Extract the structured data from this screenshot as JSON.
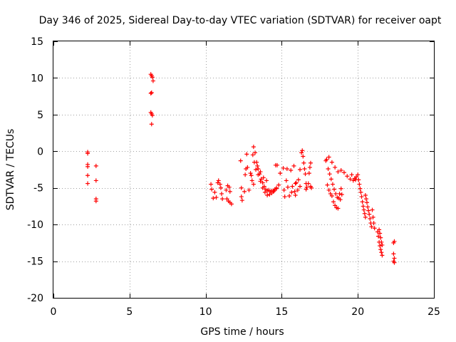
{
  "chart_data": {
    "type": "scatter",
    "title": "Day 346 of 2025, Sidereal Day-to-day VTEC variation (SDTVAR) for receiver oapt",
    "xlabel": "GPS time / hours",
    "ylabel": "SDTVAR / TECUs",
    "xlim": [
      0,
      25
    ],
    "ylim": [
      -20,
      15
    ],
    "xticks": [
      0,
      5,
      10,
      15,
      20,
      25
    ],
    "yticks": [
      -20,
      -15,
      -10,
      -5,
      0,
      5,
      10,
      15
    ],
    "xtick_labels": [
      "0",
      "5",
      "10",
      "15",
      "20",
      "25"
    ],
    "ytick_labels": [
      "-20",
      "-15",
      "-10",
      "-5",
      "0",
      "5",
      "10",
      "15"
    ],
    "grid": true,
    "marker": "+",
    "color": "#ff0000",
    "series": [
      {
        "name": "SDTVAR",
        "points": [
          [
            2.25,
            -0.1
          ],
          [
            2.25,
            -0.3
          ],
          [
            2.25,
            -1.8
          ],
          [
            2.25,
            -2.1
          ],
          [
            2.25,
            -3.3
          ],
          [
            2.25,
            -4.4
          ],
          [
            2.8,
            -2.0
          ],
          [
            2.8,
            -4.0
          ],
          [
            2.8,
            -6.5
          ],
          [
            2.8,
            -6.8
          ],
          [
            6.4,
            10.5
          ],
          [
            6.45,
            10.3
          ],
          [
            6.5,
            10.1
          ],
          [
            6.55,
            9.6
          ],
          [
            6.45,
            8.0
          ],
          [
            6.4,
            7.9
          ],
          [
            6.4,
            5.3
          ],
          [
            6.45,
            5.1
          ],
          [
            6.5,
            4.9
          ],
          [
            6.45,
            3.7
          ],
          [
            10.35,
            -4.5
          ],
          [
            10.4,
            -5.2
          ],
          [
            10.5,
            -6.4
          ],
          [
            10.6,
            -5.6
          ],
          [
            10.7,
            -6.3
          ],
          [
            10.8,
            -4.3
          ],
          [
            10.85,
            -4.0
          ],
          [
            10.95,
            -4.5
          ],
          [
            11.0,
            -5.0
          ],
          [
            11.05,
            -5.8
          ],
          [
            11.1,
            -6.5
          ],
          [
            11.35,
            -5.3
          ],
          [
            11.45,
            -4.7
          ],
          [
            11.55,
            -4.9
          ],
          [
            11.6,
            -5.5
          ],
          [
            11.4,
            -6.5
          ],
          [
            11.5,
            -6.8
          ],
          [
            11.6,
            -7.0
          ],
          [
            11.7,
            -7.2
          ],
          [
            12.3,
            -1.3
          ],
          [
            12.35,
            -5.0
          ],
          [
            12.35,
            -6.2
          ],
          [
            12.4,
            -6.7
          ],
          [
            12.55,
            -5.5
          ],
          [
            12.6,
            -3.2
          ],
          [
            12.65,
            -2.4
          ],
          [
            12.7,
            -0.4
          ],
          [
            12.75,
            -2.2
          ],
          [
            12.85,
            -5.3
          ],
          [
            13.1,
            -0.5
          ],
          [
            13.15,
            0.6
          ],
          [
            13.25,
            -0.2
          ],
          [
            13.35,
            -1.5
          ],
          [
            13.45,
            -2.4
          ],
          [
            13.55,
            -3.1
          ],
          [
            13.65,
            -3.8
          ],
          [
            13.75,
            -4.3
          ],
          [
            13.85,
            -4.8
          ],
          [
            13.95,
            -5.2
          ],
          [
            14.05,
            -5.4
          ],
          [
            14.15,
            -5.3
          ],
          [
            14.25,
            -5.5
          ],
          [
            14.35,
            -5.4
          ],
          [
            14.45,
            -5.5
          ],
          [
            14.55,
            -5.2
          ],
          [
            14.65,
            -5.1
          ],
          [
            13.3,
            -2.5
          ],
          [
            13.45,
            -3.2
          ],
          [
            13.6,
            -4.1
          ],
          [
            13.75,
            -5.0
          ],
          [
            13.9,
            -5.6
          ],
          [
            14.05,
            -6.0
          ],
          [
            14.2,
            -5.9
          ],
          [
            14.35,
            -5.7
          ],
          [
            14.5,
            -5.4
          ],
          [
            14.65,
            -5.0
          ],
          [
            14.8,
            -4.6
          ],
          [
            13.2,
            -1.5
          ],
          [
            13.4,
            -2.0
          ],
          [
            13.6,
            -2.8
          ],
          [
            13.8,
            -3.6
          ],
          [
            14.0,
            -4.0
          ],
          [
            14.7,
            -1.9
          ],
          [
            14.9,
            -3.0
          ],
          [
            15.1,
            -2.3
          ],
          [
            15.15,
            -5.3
          ],
          [
            15.2,
            -6.2
          ],
          [
            15.35,
            -2.4
          ],
          [
            15.4,
            -4.9
          ],
          [
            15.5,
            -6.1
          ],
          [
            15.6,
            -2.6
          ],
          [
            15.65,
            -5.6
          ],
          [
            15.7,
            -4.8
          ],
          [
            15.8,
            -2.0
          ],
          [
            15.85,
            -5.5
          ],
          [
            15.9,
            -6.0
          ],
          [
            15.95,
            -4.3
          ],
          [
            16.05,
            -5.3
          ],
          [
            16.1,
            -3.9
          ],
          [
            16.2,
            -2.5
          ],
          [
            16.3,
            -0.2
          ],
          [
            16.35,
            0.1
          ],
          [
            16.4,
            -0.7
          ],
          [
            16.45,
            -1.6
          ],
          [
            16.5,
            -2.4
          ],
          [
            16.55,
            -3.1
          ],
          [
            16.6,
            -4.4
          ],
          [
            16.65,
            -4.9
          ],
          [
            16.75,
            -4.4
          ],
          [
            16.8,
            -3.0
          ],
          [
            16.85,
            -2.2
          ],
          [
            16.9,
            -1.6
          ],
          [
            16.95,
            -5.0
          ],
          [
            15.9,
            -4.4
          ],
          [
            16.2,
            -4.8
          ],
          [
            16.6,
            -5.2
          ],
          [
            16.9,
            -4.8
          ],
          [
            17.95,
            -1.1
          ],
          [
            18.05,
            -2.4
          ],
          [
            18.15,
            -3.1
          ],
          [
            18.25,
            -3.8
          ],
          [
            18.35,
            -4.5
          ],
          [
            18.45,
            -5.2
          ],
          [
            18.55,
            -5.8
          ],
          [
            18.65,
            -6.3
          ],
          [
            18.75,
            -6.4
          ],
          [
            18.85,
            -6.6
          ],
          [
            18.95,
            -5.9
          ],
          [
            18.0,
            -4.6
          ],
          [
            18.1,
            -5.3
          ],
          [
            18.2,
            -5.8
          ],
          [
            18.3,
            -6.1
          ],
          [
            18.4,
            -6.9
          ],
          [
            18.5,
            -7.4
          ],
          [
            18.6,
            -7.7
          ],
          [
            18.7,
            -7.8
          ],
          [
            18.8,
            -5.8
          ],
          [
            18.9,
            -5.1
          ],
          [
            18.1,
            -0.8
          ],
          [
            18.3,
            -1.5
          ],
          [
            18.5,
            -2.2
          ],
          [
            18.7,
            -2.8
          ],
          [
            18.9,
            -2.6
          ],
          [
            19.1,
            -2.9
          ],
          [
            19.3,
            -3.4
          ],
          [
            19.5,
            -3.8
          ],
          [
            19.7,
            -4.0
          ],
          [
            19.85,
            -3.9
          ],
          [
            19.6,
            -3.2
          ],
          [
            19.8,
            -3.7
          ],
          [
            19.9,
            -3.5
          ],
          [
            20.0,
            -3.2
          ],
          [
            20.05,
            -3.9
          ],
          [
            20.1,
            -4.5
          ],
          [
            20.15,
            -5.1
          ],
          [
            20.2,
            -5.6
          ],
          [
            20.25,
            -6.2
          ],
          [
            20.3,
            -6.9
          ],
          [
            20.35,
            -7.5
          ],
          [
            20.4,
            -8.0
          ],
          [
            20.45,
            -8.5
          ],
          [
            20.5,
            -9.0
          ],
          [
            20.5,
            -6.0
          ],
          [
            20.55,
            -6.5
          ],
          [
            20.6,
            -7.0
          ],
          [
            20.65,
            -7.6
          ],
          [
            20.7,
            -8.1
          ],
          [
            20.75,
            -8.6
          ],
          [
            20.8,
            -9.2
          ],
          [
            20.85,
            -9.8
          ],
          [
            20.9,
            -10.3
          ],
          [
            20.95,
            -8.0
          ],
          [
            21.0,
            -9.0
          ],
          [
            21.05,
            -9.8
          ],
          [
            21.1,
            -10.5
          ],
          [
            21.3,
            -11.0
          ],
          [
            21.35,
            -11.6
          ],
          [
            21.4,
            -12.4
          ],
          [
            21.45,
            -12.9
          ],
          [
            21.5,
            -13.4
          ],
          [
            21.55,
            -13.8
          ],
          [
            21.6,
            -14.2
          ],
          [
            21.4,
            -10.7
          ],
          [
            21.45,
            -11.2
          ],
          [
            21.5,
            -11.8
          ],
          [
            21.55,
            -12.4
          ],
          [
            21.6,
            -12.8
          ],
          [
            22.35,
            -12.5
          ],
          [
            22.4,
            -12.3
          ],
          [
            22.35,
            -14.0
          ],
          [
            22.4,
            -14.6
          ],
          [
            22.35,
            -15.0
          ],
          [
            22.4,
            -15.2
          ],
          [
            13.0,
            -3.3
          ],
          [
            13.05,
            -4.0
          ],
          [
            12.95,
            -3.0
          ],
          [
            13.15,
            -4.5
          ],
          [
            14.6,
            -1.9
          ],
          [
            15.3,
            -4.0
          ],
          [
            17.9,
            -1.3
          ]
        ]
      }
    ]
  }
}
